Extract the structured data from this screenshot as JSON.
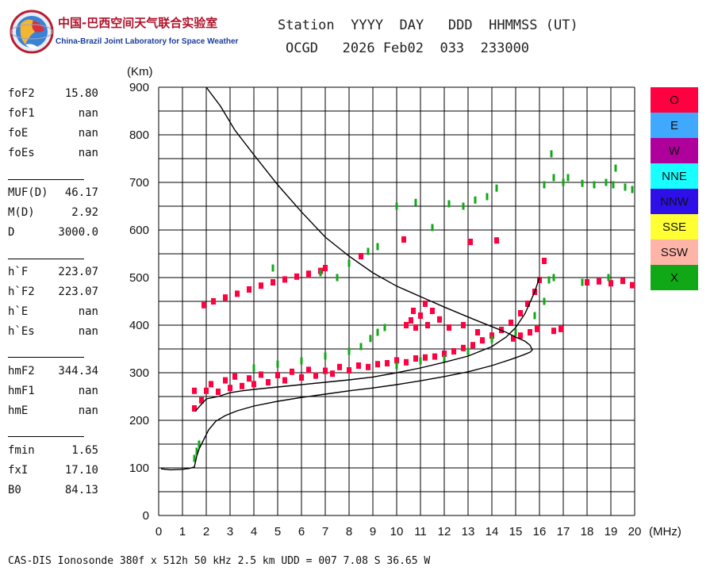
{
  "logo": {
    "title": "中国-巴西空间天气联合实验室",
    "subtitle": "China-Brazil Joint Laboratory for Space Weather"
  },
  "header": {
    "labels": "Station  YYYY  DAY   DDD  HHMMSS (UT)",
    "values": "OCGD   2026 Feb02  033  233000"
  },
  "parameters": [
    {
      "name": "foF2",
      "value": "15.80"
    },
    {
      "name": "foF1",
      "value": "nan"
    },
    {
      "name": "foE",
      "value": "nan"
    },
    {
      "name": "foEs",
      "value": "nan"
    },
    {
      "name": "MUF(D)",
      "value": "46.17"
    },
    {
      "name": "M(D)",
      "value": "2.92"
    },
    {
      "name": "D",
      "value": "3000.0"
    },
    {
      "name": "h`F",
      "value": "223.07"
    },
    {
      "name": "h`F2",
      "value": "223.07"
    },
    {
      "name": "h`E",
      "value": "nan"
    },
    {
      "name": "h`Es",
      "value": "nan"
    },
    {
      "name": "hmF2",
      "value": "344.34"
    },
    {
      "name": "hmF1",
      "value": "nan"
    },
    {
      "name": "hmE",
      "value": "nan"
    },
    {
      "name": "fmin",
      "value": "1.65"
    },
    {
      "name": "fxI",
      "value": "17.10"
    },
    {
      "name": "B0",
      "value": "84.13"
    }
  ],
  "legend": [
    {
      "label": "O",
      "color": "#ff0040"
    },
    {
      "label": "E",
      "color": "#40a8ff"
    },
    {
      "label": "W",
      "color": "#b0009c"
    },
    {
      "label": "NNE",
      "color": "#19ffff"
    },
    {
      "label": "NNW",
      "color": "#2e0fe8"
    },
    {
      "label": "SSE",
      "color": "#ffff33"
    },
    {
      "label": "SSW",
      "color": "#ffb4a8"
    },
    {
      "label": "X",
      "color": "#11a818"
    }
  ],
  "footer": "CAS-DIS Ionosonde 380f x 512h 50 kHz 2.5 km UDD = 007 7.08 S 36.65 W",
  "chart_data": {
    "type": "scatter",
    "title": "",
    "xlabel": "(MHz)",
    "ylabel": "(Km)",
    "xlim": [
      0,
      20
    ],
    "ylim": [
      0,
      900
    ],
    "xticks": [
      "0",
      "1",
      "2",
      "3",
      "4",
      "5",
      "6",
      "7",
      "8",
      "9",
      "10",
      "11",
      "12",
      "13",
      "14",
      "15",
      "16",
      "17",
      "18",
      "19",
      "20"
    ],
    "yticks": [
      "0",
      "100",
      "200",
      "300",
      "400",
      "500",
      "600",
      "700",
      "800",
      "900"
    ],
    "grid": true,
    "series": [
      {
        "name": "O-trace",
        "color": "#ff0040",
        "points": [
          [
            1.5,
            225
          ],
          [
            1.5,
            262
          ],
          [
            1.8,
            242
          ],
          [
            2.0,
            262
          ],
          [
            2.2,
            276
          ],
          [
            2.5,
            260
          ],
          [
            2.8,
            284
          ],
          [
            3.0,
            268
          ],
          [
            3.2,
            292
          ],
          [
            3.5,
            272
          ],
          [
            3.8,
            288
          ],
          [
            4.0,
            276
          ],
          [
            4.3,
            296
          ],
          [
            4.6,
            280
          ],
          [
            5.0,
            295
          ],
          [
            5.3,
            284
          ],
          [
            5.6,
            302
          ],
          [
            6.0,
            290
          ],
          [
            6.3,
            306
          ],
          [
            6.6,
            294
          ],
          [
            7.0,
            304
          ],
          [
            7.3,
            298
          ],
          [
            7.6,
            312
          ],
          [
            8.0,
            305
          ],
          [
            8.4,
            315
          ],
          [
            8.8,
            312
          ],
          [
            9.2,
            318
          ],
          [
            9.6,
            320
          ],
          [
            10.0,
            326
          ],
          [
            10.4,
            322
          ],
          [
            10.8,
            330
          ],
          [
            11.2,
            332
          ],
          [
            11.6,
            334
          ],
          [
            12.0,
            340
          ],
          [
            12.4,
            345
          ],
          [
            12.8,
            352
          ],
          [
            13.2,
            358
          ],
          [
            13.6,
            368
          ],
          [
            14.0,
            378
          ],
          [
            14.4,
            390
          ],
          [
            14.8,
            405
          ],
          [
            15.2,
            425
          ],
          [
            15.5,
            445
          ],
          [
            15.8,
            470
          ],
          [
            16.0,
            495
          ],
          [
            16.2,
            535
          ],
          [
            14.9,
            372
          ],
          [
            15.2,
            378
          ],
          [
            15.6,
            385
          ],
          [
            15.9,
            392
          ]
        ]
      },
      {
        "name": "O-multiple",
        "color": "#ff0040",
        "points": [
          [
            1.9,
            442
          ],
          [
            2.3,
            450
          ],
          [
            2.8,
            458
          ],
          [
            3.3,
            466
          ],
          [
            3.8,
            475
          ],
          [
            4.3,
            483
          ],
          [
            4.8,
            490
          ],
          [
            5.3,
            496
          ],
          [
            5.8,
            502
          ],
          [
            6.3,
            508
          ],
          [
            6.8,
            514
          ],
          [
            7.0,
            520
          ],
          [
            10.4,
            400
          ],
          [
            10.6,
            410
          ],
          [
            10.8,
            395
          ],
          [
            11.0,
            420
          ],
          [
            11.2,
            445
          ],
          [
            11.5,
            430
          ],
          [
            11.8,
            412
          ],
          [
            10.7,
            430
          ],
          [
            11.3,
            400
          ],
          [
            12.8,
            400
          ],
          [
            13.4,
            385
          ],
          [
            12.2,
            395
          ],
          [
            16.6,
            388
          ],
          [
            16.9,
            392
          ],
          [
            18.0,
            490
          ],
          [
            18.5,
            492
          ],
          [
            19.0,
            488
          ],
          [
            19.5,
            493
          ],
          [
            19.9,
            484
          ],
          [
            10.3,
            580
          ],
          [
            13.1,
            575
          ],
          [
            14.2,
            578
          ],
          [
            8.5,
            545
          ]
        ]
      },
      {
        "name": "X-trace",
        "color": "#11a818",
        "points": [
          [
            1.5,
            120
          ],
          [
            1.6,
            135
          ],
          [
            1.7,
            150
          ],
          [
            4.0,
            310
          ],
          [
            5.0,
            318
          ],
          [
            6.0,
            325
          ],
          [
            7.0,
            335
          ],
          [
            8.0,
            345
          ],
          [
            8.5,
            355
          ],
          [
            8.9,
            372
          ],
          [
            9.2,
            385
          ],
          [
            9.5,
            395
          ],
          [
            10.0,
            315
          ],
          [
            11.0,
            325
          ],
          [
            12.0,
            330
          ],
          [
            13.0,
            345
          ],
          [
            14.0,
            370
          ],
          [
            15.0,
            385
          ],
          [
            15.8,
            420
          ],
          [
            16.2,
            450
          ],
          [
            16.4,
            495
          ],
          [
            16.6,
            500
          ],
          [
            6.8,
            510
          ],
          [
            7.5,
            500
          ],
          [
            8.0,
            530
          ],
          [
            8.8,
            555
          ],
          [
            9.2,
            565
          ],
          [
            4.8,
            520
          ],
          [
            10.0,
            650
          ],
          [
            10.8,
            658
          ],
          [
            11.5,
            605
          ],
          [
            12.2,
            655
          ],
          [
            12.8,
            650
          ],
          [
            13.3,
            663
          ],
          [
            13.8,
            670
          ],
          [
            14.2,
            688
          ],
          [
            16.2,
            695
          ],
          [
            16.6,
            710
          ],
          [
            17.0,
            700
          ],
          [
            17.2,
            710
          ],
          [
            17.8,
            698
          ],
          [
            18.3,
            695
          ],
          [
            18.8,
            700
          ],
          [
            19.1,
            695
          ],
          [
            19.6,
            690
          ],
          [
            19.9,
            685
          ],
          [
            16.5,
            760
          ],
          [
            17.8,
            490
          ],
          [
            18.9,
            500
          ],
          [
            19.2,
            730
          ]
        ]
      },
      {
        "name": "profile",
        "color": "#000000",
        "style": "line",
        "points": [
          [
            0.1,
            98
          ],
          [
            0.5,
            96
          ],
          [
            1.0,
            97
          ],
          [
            1.3,
            99
          ],
          [
            1.5,
            102
          ],
          [
            1.6,
            125
          ],
          [
            1.7,
            140
          ],
          [
            1.9,
            160
          ],
          [
            2.1,
            180
          ],
          [
            2.4,
            198
          ],
          [
            2.8,
            210
          ],
          [
            3.3,
            220
          ],
          [
            4.0,
            230
          ],
          [
            5.0,
            240
          ],
          [
            6.0,
            248
          ],
          [
            7.0,
            255
          ],
          [
            8.0,
            262
          ],
          [
            9.0,
            268
          ],
          [
            10.0,
            275
          ],
          [
            11.0,
            283
          ],
          [
            12.0,
            292
          ],
          [
            13.0,
            302
          ],
          [
            14.0,
            315
          ],
          [
            14.8,
            328
          ],
          [
            15.3,
            337
          ],
          [
            15.6,
            343
          ],
          [
            15.7,
            348
          ],
          [
            15.6,
            358
          ],
          [
            15.4,
            366
          ],
          [
            15.0,
            375
          ],
          [
            14.6,
            385
          ],
          [
            14.0,
            397
          ],
          [
            13.2,
            413
          ],
          [
            12.0,
            438
          ],
          [
            11.0,
            460
          ],
          [
            10.0,
            482
          ],
          [
            9.0,
            510
          ],
          [
            8.0,
            545
          ],
          [
            7.0,
            585
          ],
          [
            6.0,
            638
          ],
          [
            5.0,
            695
          ],
          [
            4.0,
            758
          ],
          [
            3.2,
            810
          ],
          [
            2.6,
            860
          ],
          [
            2.0,
            900
          ]
        ]
      },
      {
        "name": "virtual-height",
        "color": "#000000",
        "style": "line",
        "points": [
          [
            1.55,
            220
          ],
          [
            2.0,
            245
          ],
          [
            2.5,
            250
          ],
          [
            3.0,
            258
          ],
          [
            3.5,
            262
          ],
          [
            4.0,
            265
          ],
          [
            5.0,
            270
          ],
          [
            6.0,
            275
          ],
          [
            7.0,
            280
          ],
          [
            8.0,
            285
          ],
          [
            9.0,
            291
          ],
          [
            10.0,
            300
          ],
          [
            11.0,
            310
          ],
          [
            12.0,
            322
          ],
          [
            13.0,
            335
          ],
          [
            14.0,
            355
          ],
          [
            14.6,
            375
          ],
          [
            15.0,
            395
          ],
          [
            15.4,
            425
          ],
          [
            15.8,
            470
          ],
          [
            16.0,
            500
          ]
        ]
      }
    ]
  }
}
